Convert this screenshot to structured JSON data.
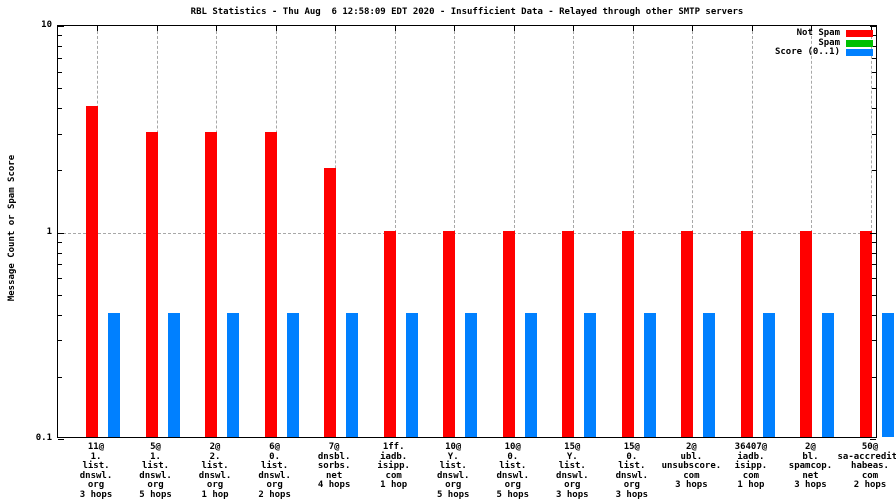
{
  "title": "RBL Statistics - Thu Aug  6 12:58:09 EDT 2020 - Insufficient Data - Relayed through other SMTP servers",
  "y_axis": {
    "label": "Message Count or Spam Score",
    "tick_labels": [
      "10",
      "1",
      "0.1"
    ]
  },
  "legend": {
    "position": "top-right",
    "entries": [
      {
        "label": "Not Spam",
        "color": "#ff0000"
      },
      {
        "label": "Spam",
        "color": "#00c000"
      },
      {
        "label": "Score (0..1)",
        "color": "#0080ff"
      }
    ]
  },
  "colors": {
    "not_spam": "#ff0000",
    "spam": "#00c000",
    "score": "#0080ff",
    "grid": "#a8a8a8",
    "axis": "#000000",
    "background": "#ffffff"
  },
  "chart_data": {
    "type": "bar",
    "title": "RBL Statistics - Thu Aug  6 12:58:09 EDT 2020 - Insufficient Data - Relayed through other SMTP servers",
    "xlabel": "",
    "ylabel": "Message Count or Spam Score",
    "y_scale": "log",
    "ylim": [
      0.1,
      10
    ],
    "grid": {
      "horizontal_lines_at": [
        1
      ],
      "vertical_line_per_category": true
    },
    "legend_position": "top-right",
    "categories": [
      [
        "11@",
        "1.",
        "list.",
        "dnswl.",
        "org",
        "3 hops"
      ],
      [
        "5@",
        "1.",
        "list.",
        "dnswl.",
        "org",
        "5 hops"
      ],
      [
        "2@",
        "2.",
        "list.",
        "dnswl.",
        "org",
        "1 hop"
      ],
      [
        "6@",
        "0.",
        "list.",
        "dnswl.",
        "org",
        "2 hops"
      ],
      [
        "7@",
        "dnsbl.",
        "sorbs.",
        "net",
        "4 hops"
      ],
      [
        "1ff.",
        "iadb.",
        "isipp.",
        "com",
        "1 hop"
      ],
      [
        "10@",
        "Y.",
        "list.",
        "dnswl.",
        "org",
        "5 hops"
      ],
      [
        "10@",
        "0.",
        "list.",
        "dnswl.",
        "org",
        "5 hops"
      ],
      [
        "15@",
        "Y.",
        "list.",
        "dnswl.",
        "org",
        "3 hops"
      ],
      [
        "15@",
        "0.",
        "list.",
        "dnswl.",
        "org",
        "3 hops"
      ],
      [
        "2@",
        "ubl.",
        "unsubscore.",
        "com",
        "3 hops"
      ],
      [
        "36407@",
        "iadb.",
        "isipp.",
        "com",
        "1 hop"
      ],
      [
        "2@",
        "bl.",
        "spamcop.",
        "net",
        "3 hops"
      ],
      [
        "50@",
        "sa-accredit.",
        "habeas.",
        "com",
        "2 hops"
      ]
    ],
    "series": [
      {
        "name": "Not Spam",
        "color": "#ff0000",
        "values": [
          4,
          3,
          3,
          3,
          2,
          1,
          1,
          1,
          1,
          1,
          1,
          1,
          1,
          1
        ]
      },
      {
        "name": "Spam",
        "color": "#00c000",
        "values": [
          0,
          0,
          0,
          0,
          0,
          0,
          0,
          0,
          0,
          0,
          0,
          0,
          0,
          0
        ]
      },
      {
        "name": "Score (0..1)",
        "color": "#0080ff",
        "values": [
          0.4,
          0.4,
          0.4,
          0.4,
          0.4,
          0.4,
          0.4,
          0.4,
          0.4,
          0.4,
          0.4,
          0.4,
          0.4,
          0.4
        ]
      }
    ]
  }
}
